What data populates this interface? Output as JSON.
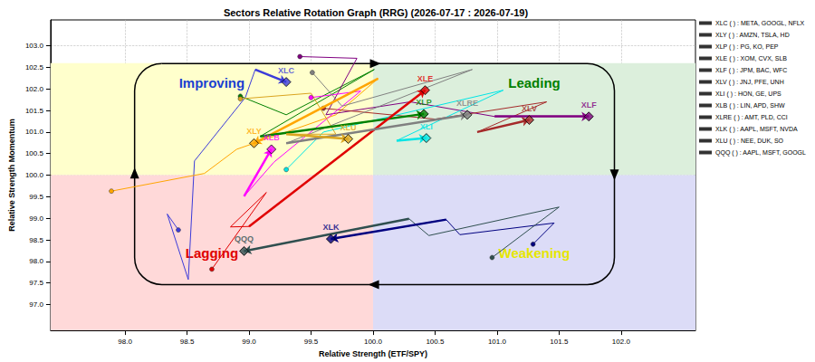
{
  "chart_data": {
    "type": "rrg",
    "title": "Sectors Relative Rotation Graph (RRG) (2026-07-17 : 2026-07-19)",
    "xlabel": "Relative Strength (ETF/SPY)",
    "ylabel": "Relative Strength Momentum",
    "xlim": [
      97.4,
      102.6
    ],
    "ylim": [
      96.4,
      103.6
    ],
    "xticks": [
      {
        "value": 98,
        "label": "98.0"
      },
      98.5,
      {
        "value": 99,
        "label": "99.0"
      },
      99.5,
      {
        "value": 100,
        "label": "100.0"
      },
      100.5,
      {
        "value": 101,
        "label": "101.0"
      },
      101.5,
      {
        "value": 102,
        "label": "102.0"
      }
    ],
    "yticks": [
      {
        "value": 97,
        "label": "97.0"
      },
      97.5,
      {
        "value": 98,
        "label": "98.0"
      },
      98.5,
      {
        "value": 99,
        "label": "99.0"
      },
      99.5,
      {
        "value": 100,
        "label": "100.0"
      },
      100.5,
      {
        "value": 101,
        "label": "101.0"
      },
      101.5,
      {
        "value": 102,
        "label": "102.0"
      },
      102.5,
      {
        "value": 103,
        "label": "103.0"
      }
    ],
    "grid": true,
    "legend": "right",
    "quadrants": [
      {
        "name": "Improving",
        "color": "#ffffcc",
        "text_color": "#1a3fd1",
        "x": [
          97.4,
          100
        ],
        "y": [
          100,
          102.6
        ]
      },
      {
        "name": "Leading",
        "color": "#dcefdc",
        "text_color": "#008000",
        "x": [
          100,
          102.6
        ],
        "y": [
          100,
          102.6
        ]
      },
      {
        "name": "Lagging",
        "color": "#ffd9d9",
        "text_color": "#e00000",
        "x": [
          97.4,
          100
        ],
        "y": [
          96.4,
          100
        ]
      },
      {
        "name": "Weakening",
        "color": "#dcdcf7",
        "text_color": "#e6e600",
        "x": [
          100,
          102.6
        ],
        "y": [
          96.4,
          100
        ]
      }
    ],
    "series": [
      {
        "name": "XLC ( ) : META, GOOGL, NFLX",
        "label": "XLC",
        "color": "#3b3bd9",
        "points": [
          [
            98.43,
            98.73
          ],
          [
            98.34,
            99.1
          ],
          [
            98.51,
            97.58
          ],
          [
            98.56,
            100.33
          ],
          [
            98.97,
            101.8
          ],
          [
            99.05,
            102.45
          ],
          [
            99.3,
            102.16
          ]
        ]
      },
      {
        "name": "XLY ( ) : AMZN, TSLA, HD",
        "label": "XLY",
        "color": "#ffa500",
        "points": [
          [
            97.89,
            99.63
          ],
          [
            98.64,
            100.04
          ],
          [
            98.9,
            100.6
          ],
          [
            99.7,
            101.4
          ],
          [
            100.04,
            102.24
          ],
          [
            99.04,
            100.74
          ]
        ]
      },
      {
        "name": "XLP ( ) : PG, KO, PEP",
        "label": "XLP",
        "color": "#008000",
        "points": [
          [
            98.93,
            101.83
          ],
          [
            99.3,
            101.4
          ],
          [
            100.01,
            102.45
          ],
          [
            99.09,
            100.9
          ],
          [
            100.41,
            101.42
          ]
        ]
      },
      {
        "name": "XLE ( ) : XOM, CVX, SLB",
        "label": "XLE",
        "color": "#e00000",
        "points": [
          [
            98.7,
            97.82
          ],
          [
            99.14,
            99.6
          ],
          [
            98.85,
            98.8
          ],
          [
            99.0,
            98.81
          ],
          [
            100.42,
            101.97
          ]
        ]
      },
      {
        "name": "XLF ( ) : JPM, BAC, WFC",
        "label": "XLF",
        "color": "#800080",
        "points": [
          [
            99.41,
            102.75
          ],
          [
            99.87,
            102.71
          ],
          [
            99.62,
            101.4
          ],
          [
            100.3,
            101.7
          ],
          [
            100.98,
            101.36
          ],
          [
            101.74,
            101.36
          ]
        ]
      },
      {
        "name": "XLV ( ) : JNJ, PFE, UNH",
        "label": "XLV",
        "color": "#a52a2a",
        "points": [
          [
            99.6,
            101.55
          ],
          [
            100.5,
            101.3
          ],
          [
            101.4,
            101.7
          ],
          [
            100.84,
            101.0
          ],
          [
            101.26,
            101.28
          ]
        ]
      },
      {
        "name": "XLI ( ) : HON, GE, UPS",
        "label": "XLI",
        "color": "#00e5e5",
        "points": [
          [
            99.3,
            100.13
          ],
          [
            99.6,
            101.0
          ],
          [
            101.05,
            101.97
          ],
          [
            100.19,
            100.8
          ],
          [
            100.43,
            100.86
          ]
        ]
      },
      {
        "name": "XLB ( ) : LIN, APD, SHW",
        "label": "XLB",
        "color": "#ff00ff",
        "points": [
          [
            99.5,
            101.8
          ],
          [
            99.9,
            101.95
          ],
          [
            99.2,
            100.3
          ],
          [
            98.96,
            99.51
          ],
          [
            99.18,
            100.6
          ]
        ]
      },
      {
        "name": "XLRE ( ) : AMT, PLD, CCI",
        "label": "XLRE",
        "color": "#808080",
        "points": [
          [
            99.51,
            102.38
          ],
          [
            99.75,
            101.6
          ],
          [
            100.8,
            102.45
          ],
          [
            99.3,
            100.74
          ],
          [
            100.76,
            101.4
          ]
        ]
      },
      {
        "name": "XLK ( ) : AAPL, MSFT, NVDA",
        "label": "XLK",
        "color": "#000080",
        "points": [
          [
            101.29,
            98.4
          ],
          [
            101.46,
            98.89
          ],
          [
            100.7,
            98.62
          ],
          [
            100.59,
            98.97
          ],
          [
            99.66,
            98.52
          ]
        ]
      },
      {
        "name": "XLU ( ) : NEE, DUK, SO",
        "label": "XLU",
        "color": "#daa520",
        "points": [
          [
            98.93,
            101.77
          ],
          [
            99.5,
            101.9
          ],
          [
            99.7,
            100.95
          ],
          [
            99.3,
            100.95
          ],
          [
            99.8,
            100.84
          ]
        ]
      },
      {
        "name": "QQQ ( ) : AAPL, MSFT, GOOGL",
        "label": "QQQ",
        "color": "#2f4f4f",
        "points": [
          [
            100.96,
            98.09
          ],
          [
            101.5,
            99.26
          ],
          [
            100.45,
            98.6
          ],
          [
            100.29,
            98.99
          ],
          [
            98.96,
            98.24
          ]
        ]
      }
    ]
  }
}
